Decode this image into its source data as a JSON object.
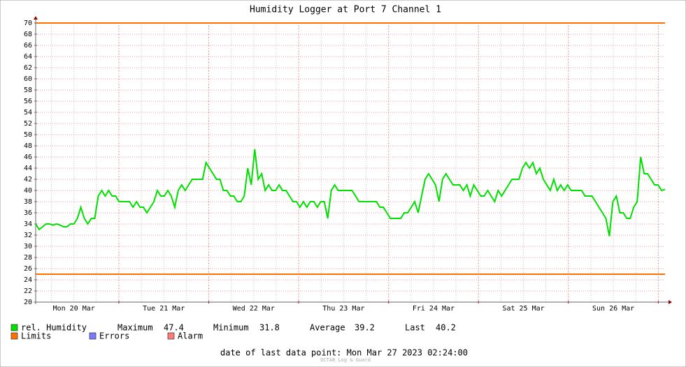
{
  "chart_data": {
    "type": "line",
    "title": "Humidity Logger at Port 7 Channel 1",
    "xlabels": [
      "Mon 20 Mar",
      "Tue 21 Mar",
      "Wed 22 Mar",
      "Thu 23 Mar",
      "Fri 24 Mar",
      "Sat 25 Mar",
      "Sun 26 Mar"
    ],
    "ylim": [
      20,
      70
    ],
    "yticks": [
      20,
      22,
      24,
      26,
      28,
      30,
      32,
      34,
      36,
      38,
      40,
      42,
      44,
      46,
      48,
      50,
      52,
      54,
      56,
      58,
      60,
      62,
      64,
      66,
      68,
      70
    ],
    "grid": true,
    "series": [
      {
        "name": "rel. Humidity",
        "color": "#00e000",
        "values": [
          34,
          33,
          33.5,
          34,
          34,
          33.8,
          34,
          33.8,
          33.5,
          33.5,
          34,
          34,
          35,
          37,
          35,
          34,
          35,
          35,
          39,
          40,
          39,
          40,
          39,
          39,
          38,
          38,
          38,
          38,
          37,
          38,
          37,
          37,
          36,
          37,
          38,
          40,
          39,
          39,
          40,
          39,
          37,
          40,
          41,
          40,
          41,
          42,
          42,
          42,
          42,
          45,
          44,
          43,
          42,
          42,
          40,
          40,
          39,
          39,
          38,
          38,
          39,
          44,
          41,
          47.4,
          42,
          43,
          40,
          41,
          40,
          40,
          41,
          40,
          40,
          39,
          38,
          38,
          37,
          38,
          37,
          38,
          38,
          37,
          38,
          38,
          35,
          40,
          41,
          40,
          40,
          40,
          40,
          40,
          39,
          38,
          38,
          38,
          38,
          38,
          38,
          37,
          37,
          36,
          35,
          35,
          35,
          35,
          36,
          36,
          37,
          38,
          36,
          39,
          42,
          43,
          42,
          41,
          38,
          42,
          43,
          42,
          41,
          41,
          41,
          40,
          41,
          39,
          41,
          40,
          39,
          39,
          40,
          39,
          38,
          40,
          39,
          40,
          41,
          42,
          42,
          42,
          44,
          45,
          44,
          45,
          43,
          44,
          42,
          41,
          40,
          42,
          40,
          41,
          40,
          41,
          40,
          40,
          40,
          40,
          39,
          39,
          39,
          38,
          37,
          36,
          35,
          31.8,
          38,
          39,
          36,
          36,
          35,
          35,
          37,
          38,
          46,
          43,
          43,
          42,
          41,
          41,
          40,
          40.2
        ]
      }
    ],
    "limits": {
      "name": "Limits",
      "color": "#ff7000",
      "values": [
        70,
        25
      ]
    },
    "stats": [
      {
        "label": "Maximum",
        "value": 47.4
      },
      {
        "label": "Minimum",
        "value": 31.8
      },
      {
        "label": "Average",
        "value": 39.2
      },
      {
        "label": "Last",
        "value": 40.2
      }
    ],
    "extra_legend": [
      {
        "name": "Errors",
        "color": "#7b7bff"
      },
      {
        "name": "Alarm",
        "color": "#ff7b7b"
      }
    ],
    "footer": "date of last data point:  Mon Mar 27 2023 02:24:00",
    "credit": "OCTA8 Log & Guard"
  }
}
